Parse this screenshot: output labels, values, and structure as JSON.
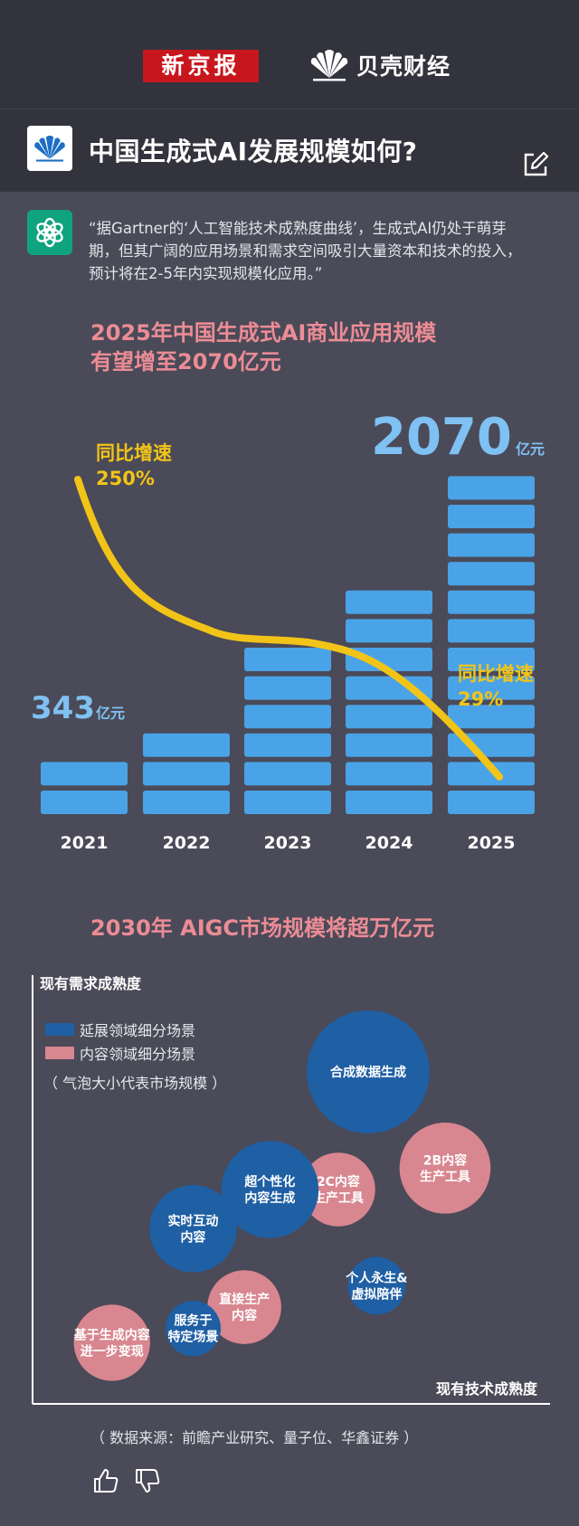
{
  "header": {
    "brand_left": "新京报",
    "brand_right": "贝壳财经",
    "title": "中国生成式AI发展规模如何?",
    "edit_icon": "edit-icon",
    "logo_icon": "shell-logo-icon"
  },
  "quote": {
    "icon": "chatgpt-icon",
    "text": "“据Gartner的‘人工智能技术成熟度曲线’，生成式AI仍处于萌芽期，但其广阔的应用场景和需求空间吸引大量资本和技术的投入，预计将在2-5年内实现规模化应用。”"
  },
  "section1": {
    "title_line1": "2025年中国生成式AI商业应用规模",
    "title_line2": "有望增至2070亿元"
  },
  "chart_data": [
    {
      "type": "bar",
      "categories": [
        "2021",
        "2022",
        "2023",
        "2024",
        "2025"
      ],
      "values": [
        343,
        600,
        950,
        1450,
        2070
      ],
      "unit": "亿元",
      "first_label": {
        "value": "343",
        "unit": "亿元"
      },
      "last_label": {
        "value": "2070",
        "unit": "亿元"
      },
      "growth_line": {
        "points": [
          2.5,
          1.0,
          0.75,
          0.55,
          0.29
        ],
        "start_label_title": "同比增速",
        "start_label_value": "250%",
        "end_label_title": "同比增速",
        "end_label_value": "29%"
      },
      "colors": {
        "bar": "#4aa3e6",
        "line": "#f2c418",
        "value_text": "#7fc1f2"
      }
    },
    {
      "type": "scatter",
      "title": "2030年 AIGC市场规模将超万亿元",
      "xlabel": "现有技术成熟度",
      "ylabel": "现有需求成熟度",
      "legend": [
        {
          "name": "延展领域细分场景",
          "color": "#1f5fa3"
        },
        {
          "name": "内容领域细分场景",
          "color": "#d8868f"
        }
      ],
      "note": "（ 气泡大小代表市场规模 ）",
      "bubbles": [
        {
          "label": "合成数据生成",
          "x": 0.68,
          "y": 0.83,
          "size": 1.0,
          "group": 0
        },
        {
          "label": "2B内容\n生产工具",
          "x": 0.86,
          "y": 0.56,
          "size": 0.74,
          "group": 1
        },
        {
          "label": "2C内容\n生产工具",
          "x": 0.61,
          "y": 0.5,
          "size": 0.6,
          "group": 1
        },
        {
          "label": "超个性化\n内容生成",
          "x": 0.45,
          "y": 0.5,
          "size": 0.79,
          "group": 0
        },
        {
          "label": "实时互动\n内容",
          "x": 0.27,
          "y": 0.39,
          "size": 0.71,
          "group": 0
        },
        {
          "label": "个人永生&\n虚拟陪伴",
          "x": 0.7,
          "y": 0.23,
          "size": 0.47,
          "group": 0
        },
        {
          "label": "直接生产\n内容",
          "x": 0.39,
          "y": 0.17,
          "size": 0.6,
          "group": 1
        },
        {
          "label": "服务于\n特定场景",
          "x": 0.27,
          "y": 0.11,
          "size": 0.45,
          "group": 0
        },
        {
          "label": "基于生成内容\n进一步变现",
          "x": 0.08,
          "y": 0.07,
          "size": 0.62,
          "group": 1
        }
      ]
    }
  ],
  "footer": {
    "source": "（ 数据来源：前瞻产业研究、量子位、华鑫证券 ）",
    "like_icon": "thumbs-up-icon",
    "dislike_icon": "thumbs-down-icon"
  }
}
